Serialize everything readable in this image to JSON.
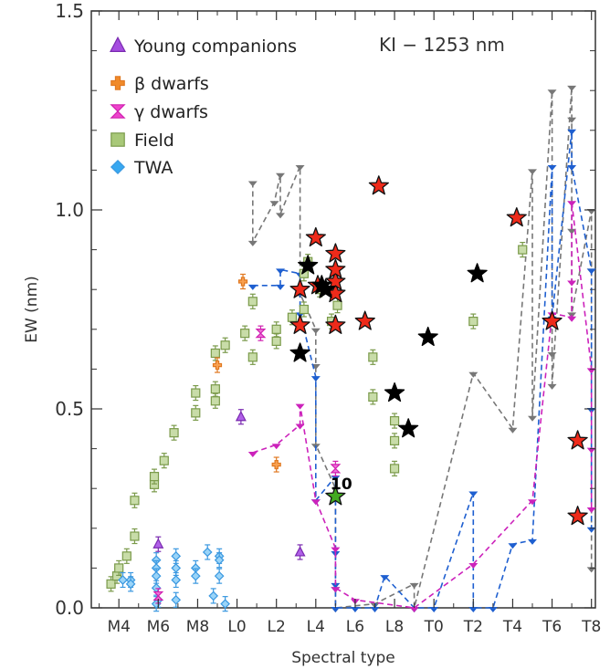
{
  "chart_data": {
    "type": "scatter",
    "annotation": "KI − 1253 nm",
    "xlabel": "Spectral type",
    "ylabel": "EW (nm)",
    "xlim": [
      2.6,
      28.2
    ],
    "ylim": [
      0.0,
      1.5
    ],
    "x_ticks": [
      {
        "x": 4,
        "label": "M4"
      },
      {
        "x": 6,
        "label": "M6"
      },
      {
        "x": 8,
        "label": "M8"
      },
      {
        "x": 10,
        "label": "L0"
      },
      {
        "x": 12,
        "label": "L2"
      },
      {
        "x": 14,
        "label": "L4"
      },
      {
        "x": 16,
        "label": "L6"
      },
      {
        "x": 18,
        "label": "L8"
      },
      {
        "x": 20,
        "label": "T0"
      },
      {
        "x": 22,
        "label": "T2"
      },
      {
        "x": 24,
        "label": "T4"
      },
      {
        "x": 26,
        "label": "T6"
      },
      {
        "x": 28,
        "label": "T8"
      }
    ],
    "y_ticks": [
      {
        "y": 0.0,
        "label": "0.0"
      },
      {
        "y": 0.5,
        "label": "0.5"
      },
      {
        "y": 1.0,
        "label": "1.0"
      },
      {
        "y": 1.5,
        "label": "1.5"
      }
    ],
    "legend": [
      {
        "label": "Young companions",
        "marker": "triangle",
        "color": "#a64de0"
      },
      {
        "label": "β dwarfs",
        "marker": "cross",
        "color": "#f08a2a"
      },
      {
        "label": "γ dwarfs",
        "marker": "hourglass",
        "color": "#ee44cc"
      },
      {
        "label": "Field",
        "marker": "square",
        "color": "#a8c878"
      },
      {
        "label": "TWA",
        "marker": "diamond",
        "color": "#38a8f0"
      }
    ],
    "series": [
      {
        "name": "Field",
        "marker": "square",
        "color": "#c8dca8",
        "edge": "#7a9a4a",
        "points": [
          {
            "x": 3.6,
            "y": 0.06
          },
          {
            "x": 3.9,
            "y": 0.08
          },
          {
            "x": 4.0,
            "y": 0.1
          },
          {
            "x": 4.4,
            "y": 0.13
          },
          {
            "x": 4.8,
            "y": 0.18
          },
          {
            "x": 4.8,
            "y": 0.27
          },
          {
            "x": 5.8,
            "y": 0.31
          },
          {
            "x": 5.8,
            "y": 0.33
          },
          {
            "x": 6.3,
            "y": 0.37
          },
          {
            "x": 6.8,
            "y": 0.44
          },
          {
            "x": 7.9,
            "y": 0.49
          },
          {
            "x": 7.9,
            "y": 0.54
          },
          {
            "x": 8.9,
            "y": 0.52
          },
          {
            "x": 8.9,
            "y": 0.55
          },
          {
            "x": 8.9,
            "y": 0.64
          },
          {
            "x": 9.4,
            "y": 0.66
          },
          {
            "x": 10.4,
            "y": 0.69
          },
          {
            "x": 10.8,
            "y": 0.63
          },
          {
            "x": 10.8,
            "y": 0.77
          },
          {
            "x": 12.0,
            "y": 0.67
          },
          {
            "x": 12.0,
            "y": 0.7
          },
          {
            "x": 12.8,
            "y": 0.73
          },
          {
            "x": 13.4,
            "y": 0.75
          },
          {
            "x": 13.4,
            "y": 0.84
          },
          {
            "x": 13.6,
            "y": 0.87
          },
          {
            "x": 14.2,
            "y": 0.8
          },
          {
            "x": 14.8,
            "y": 0.72
          },
          {
            "x": 15.1,
            "y": 0.76
          },
          {
            "x": 16.9,
            "y": 0.63
          },
          {
            "x": 16.9,
            "y": 0.53
          },
          {
            "x": 18.0,
            "y": 0.47
          },
          {
            "x": 18.0,
            "y": 0.42
          },
          {
            "x": 18.0,
            "y": 0.35
          },
          {
            "x": 22.0,
            "y": 0.72
          },
          {
            "x": 24.5,
            "y": 0.9
          }
        ]
      },
      {
        "name": "TWA",
        "marker": "diamond",
        "color": "#9ad4f8",
        "edge": "#3a98e0",
        "points": [
          {
            "x": 4.2,
            "y": 0.07
          },
          {
            "x": 4.6,
            "y": 0.07
          },
          {
            "x": 4.6,
            "y": 0.06
          },
          {
            "x": 5.9,
            "y": 0.12
          },
          {
            "x": 5.9,
            "y": 0.1
          },
          {
            "x": 5.9,
            "y": 0.08
          },
          {
            "x": 5.9,
            "y": 0.05
          },
          {
            "x": 6.0,
            "y": 0.02
          },
          {
            "x": 5.9,
            "y": 0.01
          },
          {
            "x": 6.9,
            "y": 0.13
          },
          {
            "x": 6.9,
            "y": 0.1
          },
          {
            "x": 6.9,
            "y": 0.07
          },
          {
            "x": 6.9,
            "y": 0.02
          },
          {
            "x": 7.9,
            "y": 0.1
          },
          {
            "x": 7.9,
            "y": 0.08
          },
          {
            "x": 8.5,
            "y": 0.14
          },
          {
            "x": 8.8,
            "y": 0.03
          },
          {
            "x": 9.1,
            "y": 0.13
          },
          {
            "x": 9.1,
            "y": 0.12
          },
          {
            "x": 9.1,
            "y": 0.08
          },
          {
            "x": 9.4,
            "y": 0.01
          }
        ]
      },
      {
        "name": "Young companions",
        "marker": "triangle",
        "color": "#b060e8",
        "edge": "#7a2ab0",
        "points": [
          {
            "x": 6.0,
            "y": 0.16
          },
          {
            "x": 10.2,
            "y": 0.48
          },
          {
            "x": 13.2,
            "y": 0.14
          }
        ]
      },
      {
        "name": "β dwarfs",
        "marker": "cross",
        "color": "#f8a050",
        "edge": "#e07820",
        "points": [
          {
            "x": 9.0,
            "y": 0.61
          },
          {
            "x": 10.3,
            "y": 0.82
          },
          {
            "x": 12.0,
            "y": 0.36
          }
        ]
      },
      {
        "name": "γ dwarfs",
        "marker": "hourglass",
        "color": "#f070d8",
        "edge": "#d020b0",
        "points": [
          {
            "x": 6.0,
            "y": 0.03
          },
          {
            "x": 11.2,
            "y": 0.69
          },
          {
            "x": 15.0,
            "y": 0.35
          }
        ]
      },
      {
        "name": "Red stars",
        "marker": "star",
        "color": "#ee2a1a",
        "edge": "#111111",
        "points": [
          {
            "x": 13.2,
            "y": 0.71
          },
          {
            "x": 13.2,
            "y": 0.8
          },
          {
            "x": 14.0,
            "y": 0.93
          },
          {
            "x": 14.1,
            "y": 0.81
          },
          {
            "x": 15.0,
            "y": 0.71
          },
          {
            "x": 15.0,
            "y": 0.79
          },
          {
            "x": 15.0,
            "y": 0.82
          },
          {
            "x": 15.0,
            "y": 0.85
          },
          {
            "x": 15.0,
            "y": 0.89
          },
          {
            "x": 16.5,
            "y": 0.72
          },
          {
            "x": 17.2,
            "y": 1.06
          },
          {
            "x": 24.2,
            "y": 0.98
          },
          {
            "x": 26.0,
            "y": 0.72
          },
          {
            "x": 27.3,
            "y": 0.42
          },
          {
            "x": 27.3,
            "y": 0.23
          }
        ]
      },
      {
        "name": "Black stars",
        "marker": "star",
        "color": "#000000",
        "edge": "#000000",
        "points": [
          {
            "x": 13.2,
            "y": 0.64
          },
          {
            "x": 13.6,
            "y": 0.86
          },
          {
            "x": 14.3,
            "y": 0.81
          },
          {
            "x": 14.5,
            "y": 0.8
          },
          {
            "x": 18.0,
            "y": 0.54
          },
          {
            "x": 18.7,
            "y": 0.45
          },
          {
            "x": 19.7,
            "y": 0.68
          },
          {
            "x": 22.2,
            "y": 0.84
          }
        ]
      },
      {
        "name": "Green star",
        "marker": "star",
        "color": "#44aa22",
        "edge": "#111111",
        "points": [
          {
            "x": 15.0,
            "y": 0.28,
            "label": "10"
          }
        ]
      }
    ],
    "limit_lines": [
      {
        "name": "grey",
        "color": "#777777",
        "points": [
          [
            10.8,
            1.07
          ],
          [
            10.8,
            0.92
          ],
          [
            11.9,
            1.02
          ],
          [
            12.2,
            1.09
          ],
          [
            12.2,
            0.99
          ],
          [
            13.2,
            1.11
          ],
          [
            13.2,
            0.79
          ],
          [
            14.0,
            0.7
          ],
          [
            14.0,
            0.61
          ],
          [
            14.0,
            0.41
          ],
          [
            15.0,
            0.3
          ],
          [
            15.0,
            0.05
          ],
          [
            15.0,
            0.0
          ],
          [
            17.0,
            0.01
          ],
          [
            19.0,
            0.06
          ],
          [
            19.0,
            0.0
          ],
          [
            22.0,
            0.59
          ],
          [
            24.0,
            0.45
          ],
          [
            25.0,
            1.1
          ],
          [
            25.0,
            0.48
          ],
          [
            26.0,
            1.3
          ],
          [
            26.0,
            0.64
          ],
          [
            26.0,
            0.56
          ],
          [
            27.0,
            1.31
          ],
          [
            27.0,
            1.23
          ],
          [
            27.0,
            0.95
          ],
          [
            27.0,
            0.74
          ],
          [
            28.0,
            1.0
          ],
          [
            28.0,
            0.85
          ],
          [
            28.0,
            0.1
          ]
        ]
      },
      {
        "name": "blue",
        "color": "#1e5fd0",
        "points": [
          [
            10.8,
            0.81
          ],
          [
            12.2,
            0.81
          ],
          [
            12.2,
            0.85
          ],
          [
            13.2,
            0.84
          ],
          [
            13.2,
            0.74
          ],
          [
            14.0,
            0.58
          ],
          [
            14.0,
            0.27
          ],
          [
            15.0,
            0.33
          ],
          [
            15.0,
            0.14
          ],
          [
            15.0,
            0.06
          ],
          [
            15.0,
            0.0
          ],
          [
            16.0,
            0.0
          ],
          [
            17.0,
            0.0
          ],
          [
            17.5,
            0.08
          ],
          [
            19.0,
            0.0
          ],
          [
            20.0,
            0.0
          ],
          [
            22.0,
            0.29
          ],
          [
            22.0,
            0.0
          ],
          [
            23.0,
            0.0
          ],
          [
            24.0,
            0.16
          ],
          [
            25.0,
            0.17
          ],
          [
            26.0,
            1.11
          ],
          [
            26.0,
            0.73
          ],
          [
            27.0,
            1.2
          ],
          [
            27.0,
            1.11
          ],
          [
            28.0,
            0.85
          ],
          [
            28.0,
            0.5
          ],
          [
            28.0,
            0.2
          ]
        ]
      },
      {
        "name": "magenta",
        "color": "#cc22bb",
        "points": [
          [
            10.8,
            0.39
          ],
          [
            12.0,
            0.41
          ],
          [
            13.2,
            0.46
          ],
          [
            13.2,
            0.51
          ],
          [
            14.0,
            0.27
          ],
          [
            15.0,
            0.15
          ],
          [
            15.0,
            0.05
          ],
          [
            16.0,
            0.02
          ],
          [
            19.0,
            0.0
          ],
          [
            22.0,
            0.11
          ],
          [
            25.0,
            0.27
          ],
          [
            26.0,
            0.74
          ],
          [
            27.0,
            0.73
          ],
          [
            27.0,
            0.82
          ],
          [
            27.0,
            1.02
          ],
          [
            28.0,
            0.6
          ],
          [
            28.0,
            0.4
          ],
          [
            28.0,
            0.25
          ]
        ]
      }
    ]
  }
}
